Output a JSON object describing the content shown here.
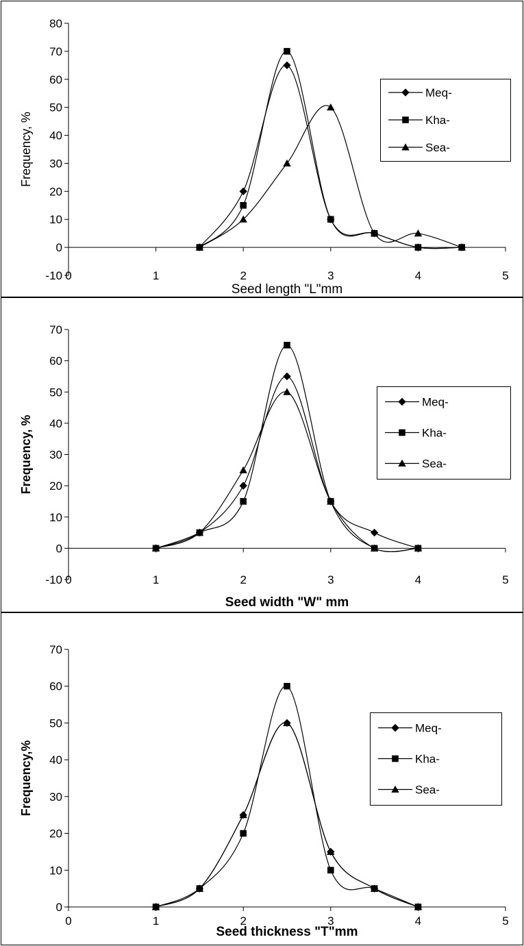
{
  "chart_data": [
    {
      "type": "line",
      "xlabel": "Seed length \"L\"mm",
      "ylabel": "Frequency, %",
      "xlim": [
        0,
        5
      ],
      "ylim": [
        -10,
        80
      ],
      "xticks": [
        "0",
        "1",
        "2",
        "3",
        "4",
        "5"
      ],
      "yticks": [
        "-10",
        "0",
        "10",
        "20",
        "30",
        "40",
        "50",
        "60",
        "70",
        "80"
      ],
      "grid": false,
      "legend_position": "right",
      "series": [
        {
          "name": "Meq-",
          "marker": "diamond",
          "x": [
            1.5,
            2,
            2.5,
            3,
            3.5,
            4,
            4.5
          ],
          "y": [
            0,
            20,
            65,
            10,
            5,
            0,
            0
          ]
        },
        {
          "name": "Kha-",
          "marker": "square",
          "x": [
            1.5,
            2,
            2.5,
            3,
            3.5,
            4,
            4.5
          ],
          "y": [
            0,
            15,
            70,
            10,
            5,
            0,
            0
          ]
        },
        {
          "name": "Sea-",
          "marker": "triangle",
          "x": [
            1.5,
            2,
            2.5,
            3,
            3.5,
            4,
            4.5
          ],
          "y": [
            0,
            10,
            30,
            50,
            5,
            5,
            0
          ]
        }
      ]
    },
    {
      "type": "line",
      "xlabel": "Seed width \"W\" mm",
      "ylabel": "Frequency, %",
      "xlim": [
        0,
        5
      ],
      "ylim": [
        -10,
        70
      ],
      "xticks": [
        "0",
        "1",
        "2",
        "3",
        "4",
        "5"
      ],
      "yticks": [
        "-10",
        "0",
        "10",
        "20",
        "30",
        "40",
        "50",
        "60",
        "70"
      ],
      "grid": false,
      "legend_position": "right",
      "series": [
        {
          "name": "Meq-",
          "marker": "diamond",
          "x": [
            1,
            1.5,
            2,
            2.5,
            3,
            3.5,
            4
          ],
          "y": [
            0,
            5,
            20,
            55,
            15,
            5,
            0
          ]
        },
        {
          "name": "Kha-",
          "marker": "square",
          "x": [
            1,
            1.5,
            2,
            2.5,
            3,
            3.5,
            4
          ],
          "y": [
            0,
            5,
            15,
            65,
            15,
            0,
            0
          ]
        },
        {
          "name": "Sea-",
          "marker": "triangle",
          "x": [
            1,
            1.5,
            2,
            2.5,
            3,
            3.5,
            4
          ],
          "y": [
            0,
            5,
            25,
            50,
            15,
            0,
            0
          ]
        }
      ]
    },
    {
      "type": "line",
      "xlabel": "Seed thickness \"T\"mm",
      "ylabel": "Frequency,%",
      "xlim": [
        0,
        5
      ],
      "ylim": [
        0,
        70
      ],
      "xticks": [
        "0",
        "1",
        "2",
        "3",
        "4",
        "5"
      ],
      "yticks": [
        "0",
        "10",
        "20",
        "30",
        "40",
        "50",
        "60",
        "70"
      ],
      "grid": false,
      "legend_position": "right",
      "series": [
        {
          "name": "Meq-",
          "marker": "diamond",
          "x": [
            1,
            1.5,
            2,
            2.5,
            3,
            3.5,
            4
          ],
          "y": [
            0,
            5,
            25,
            50,
            15,
            5,
            0
          ]
        },
        {
          "name": "Kha-",
          "marker": "square",
          "x": [
            1,
            1.5,
            2,
            2.5,
            3,
            3.5,
            4
          ],
          "y": [
            0,
            5,
            20,
            60,
            10,
            5,
            0
          ]
        },
        {
          "name": "Sea-",
          "marker": "triangle",
          "x": [
            1,
            1.5,
            2,
            2.5,
            3,
            3.5,
            4
          ],
          "y": [
            0,
            5,
            25,
            50,
            15,
            5,
            0
          ]
        }
      ]
    }
  ]
}
